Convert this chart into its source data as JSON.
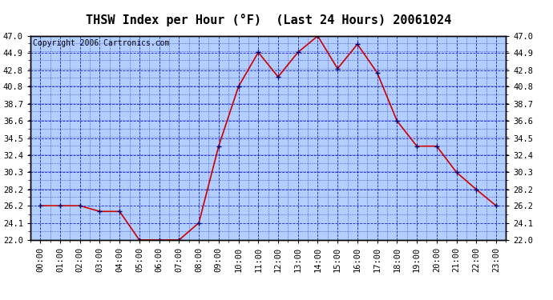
{
  "title": "THSW Index per Hour (°F)  (Last 24 Hours) 20061024",
  "copyright": "Copyright 2006 Cartronics.com",
  "hours": [
    "00:00",
    "01:00",
    "02:00",
    "03:00",
    "04:00",
    "05:00",
    "06:00",
    "07:00",
    "08:00",
    "09:00",
    "10:00",
    "11:00",
    "12:00",
    "13:00",
    "14:00",
    "15:00",
    "16:00",
    "17:00",
    "18:00",
    "19:00",
    "20:00",
    "21:00",
    "22:00",
    "23:00"
  ],
  "values": [
    26.2,
    26.2,
    26.2,
    25.5,
    25.5,
    22.0,
    22.0,
    22.0,
    24.1,
    33.5,
    40.8,
    45.0,
    42.0,
    45.0,
    47.0,
    43.0,
    46.0,
    42.5,
    36.6,
    33.5,
    33.5,
    30.3,
    28.2,
    26.2
  ],
  "ylim": [
    22.0,
    47.0
  ],
  "yticks": [
    22.0,
    24.1,
    26.2,
    28.2,
    30.3,
    32.4,
    34.5,
    36.6,
    38.7,
    40.8,
    42.8,
    44.9,
    47.0
  ],
  "line_color": "#cc0000",
  "marker_color": "#000077",
  "bg_color": "#b3cfff",
  "grid_color": "#0000bb",
  "border_color": "#000000",
  "outer_bg": "#ffffff",
  "title_color": "#000000",
  "copyright_color": "#000000",
  "title_fontsize": 11,
  "copyright_fontsize": 7,
  "tick_fontsize": 7.5
}
